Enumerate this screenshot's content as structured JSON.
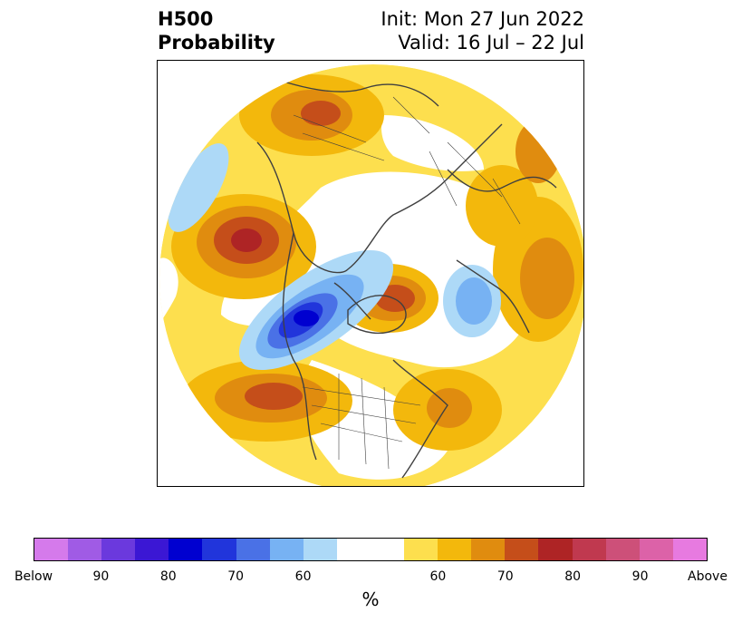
{
  "header": {
    "title_line1": "H500",
    "title_line2": "Probability",
    "init_text": "Init: Mon 27 Jun 2022",
    "valid_text": "Valid: 16 Jul – 22 Jul"
  },
  "map": {
    "projection": "north-polar-stereographic",
    "coastline_color": "#404040",
    "border_color": "#404040",
    "anomaly_regions": [
      {
        "region": "North Pacific (Gulf of Alaska)",
        "sign": "above",
        "max_category": "70-80"
      },
      {
        "region": "Greenland",
        "sign": "above",
        "max_category": "70-80"
      },
      {
        "region": "Western United States",
        "sign": "above",
        "max_category": "70"
      },
      {
        "region": "Northern Europe / Scandinavia",
        "sign": "above",
        "max_category": "70"
      },
      {
        "region": "Central Siberia",
        "sign": "above",
        "max_category": "60-70"
      },
      {
        "region": "North Atlantic (east of Newfoundland)",
        "sign": "above",
        "max_category": "70"
      },
      {
        "region": "Canadian Arctic / Hudson Bay",
        "sign": "below",
        "max_category": "80-90"
      },
      {
        "region": "Barents / Kara Sea",
        "sign": "below",
        "max_category": "60-70"
      },
      {
        "region": "Bering Sea / Aleutians",
        "sign": "below",
        "max_category": "60"
      }
    ]
  },
  "colorbar": {
    "colors": [
      "#d57aeb",
      "#a05be5",
      "#6b39dd",
      "#3b17d4",
      "#0000d0",
      "#2135db",
      "#4a71e6",
      "#77b2f3",
      "#add9f7",
      "#ffffff",
      "#ffffff",
      "#fddf4e",
      "#f3b80c",
      "#e08c0f",
      "#c54e1a",
      "#ae2425",
      "#c0394f",
      "#cd5079",
      "#dc62a8",
      "#e77ae0"
    ],
    "tick_labels": [
      "Below",
      "90",
      "80",
      "70",
      "60",
      "60",
      "70",
      "80",
      "90",
      "Above"
    ],
    "unit_label": "%"
  }
}
